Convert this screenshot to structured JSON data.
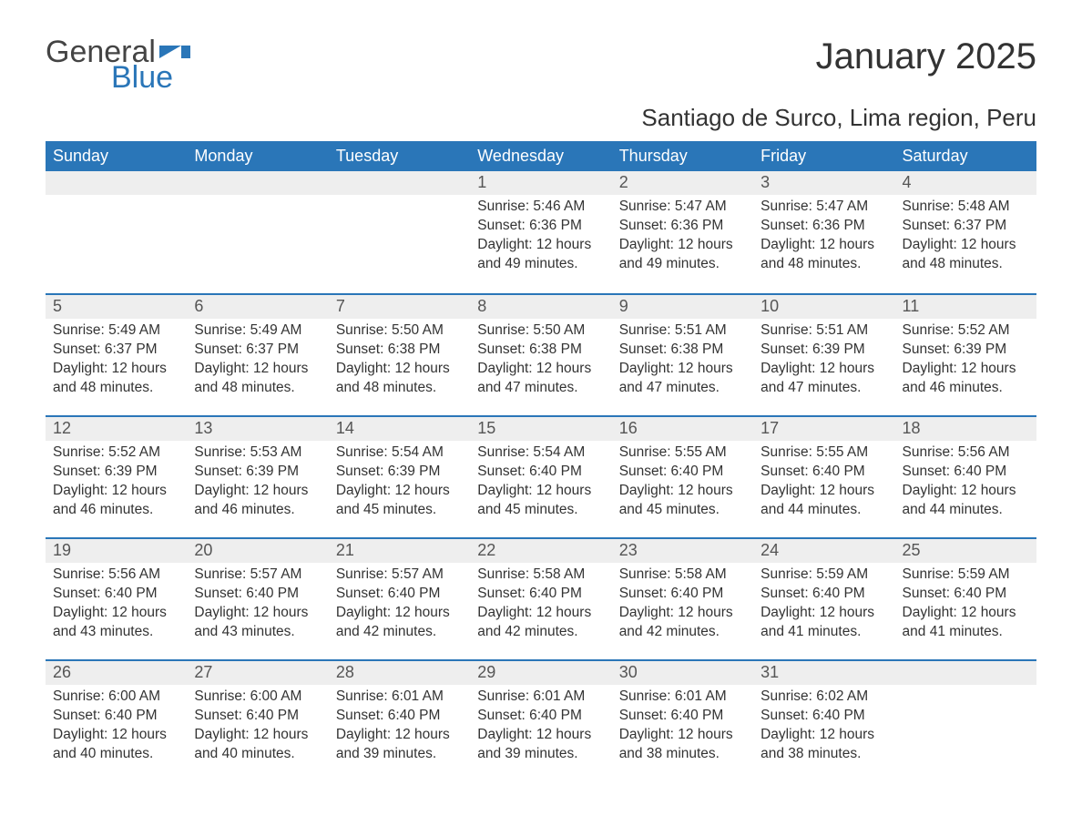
{
  "logo": {
    "word1": "General",
    "word2": "Blue",
    "flag_color": "#2a76b8",
    "text_gray": "#444444"
  },
  "header": {
    "title": "January 2025",
    "location": "Santiago de Surco, Lima region, Peru"
  },
  "styling": {
    "header_bg": "#2a76b8",
    "header_text": "#ffffff",
    "row_divider": "#2a76b8",
    "daynum_bg": "#eeeeee",
    "daynum_text": "#555555",
    "body_text": "#333333",
    "page_bg": "#ffffff",
    "title_fontsize": 40,
    "location_fontsize": 26,
    "dayhead_fontsize": 18,
    "body_fontsize": 15.5
  },
  "calendar": {
    "type": "month-grid",
    "columns": 7,
    "day_headers": [
      "Sunday",
      "Monday",
      "Tuesday",
      "Wednesday",
      "Thursday",
      "Friday",
      "Saturday"
    ],
    "labels": {
      "sunrise": "Sunrise",
      "sunset": "Sunset",
      "daylight": "Daylight"
    },
    "weeks": [
      [
        null,
        null,
        null,
        {
          "day": "1",
          "sunrise": "5:46 AM",
          "sunset": "6:36 PM",
          "daylight": "12 hours and 49 minutes."
        },
        {
          "day": "2",
          "sunrise": "5:47 AM",
          "sunset": "6:36 PM",
          "daylight": "12 hours and 49 minutes."
        },
        {
          "day": "3",
          "sunrise": "5:47 AM",
          "sunset": "6:36 PM",
          "daylight": "12 hours and 48 minutes."
        },
        {
          "day": "4",
          "sunrise": "5:48 AM",
          "sunset": "6:37 PM",
          "daylight": "12 hours and 48 minutes."
        }
      ],
      [
        {
          "day": "5",
          "sunrise": "5:49 AM",
          "sunset": "6:37 PM",
          "daylight": "12 hours and 48 minutes."
        },
        {
          "day": "6",
          "sunrise": "5:49 AM",
          "sunset": "6:37 PM",
          "daylight": "12 hours and 48 minutes."
        },
        {
          "day": "7",
          "sunrise": "5:50 AM",
          "sunset": "6:38 PM",
          "daylight": "12 hours and 48 minutes."
        },
        {
          "day": "8",
          "sunrise": "5:50 AM",
          "sunset": "6:38 PM",
          "daylight": "12 hours and 47 minutes."
        },
        {
          "day": "9",
          "sunrise": "5:51 AM",
          "sunset": "6:38 PM",
          "daylight": "12 hours and 47 minutes."
        },
        {
          "day": "10",
          "sunrise": "5:51 AM",
          "sunset": "6:39 PM",
          "daylight": "12 hours and 47 minutes."
        },
        {
          "day": "11",
          "sunrise": "5:52 AM",
          "sunset": "6:39 PM",
          "daylight": "12 hours and 46 minutes."
        }
      ],
      [
        {
          "day": "12",
          "sunrise": "5:52 AM",
          "sunset": "6:39 PM",
          "daylight": "12 hours and 46 minutes."
        },
        {
          "day": "13",
          "sunrise": "5:53 AM",
          "sunset": "6:39 PM",
          "daylight": "12 hours and 46 minutes."
        },
        {
          "day": "14",
          "sunrise": "5:54 AM",
          "sunset": "6:39 PM",
          "daylight": "12 hours and 45 minutes."
        },
        {
          "day": "15",
          "sunrise": "5:54 AM",
          "sunset": "6:40 PM",
          "daylight": "12 hours and 45 minutes."
        },
        {
          "day": "16",
          "sunrise": "5:55 AM",
          "sunset": "6:40 PM",
          "daylight": "12 hours and 45 minutes."
        },
        {
          "day": "17",
          "sunrise": "5:55 AM",
          "sunset": "6:40 PM",
          "daylight": "12 hours and 44 minutes."
        },
        {
          "day": "18",
          "sunrise": "5:56 AM",
          "sunset": "6:40 PM",
          "daylight": "12 hours and 44 minutes."
        }
      ],
      [
        {
          "day": "19",
          "sunrise": "5:56 AM",
          "sunset": "6:40 PM",
          "daylight": "12 hours and 43 minutes."
        },
        {
          "day": "20",
          "sunrise": "5:57 AM",
          "sunset": "6:40 PM",
          "daylight": "12 hours and 43 minutes."
        },
        {
          "day": "21",
          "sunrise": "5:57 AM",
          "sunset": "6:40 PM",
          "daylight": "12 hours and 42 minutes."
        },
        {
          "day": "22",
          "sunrise": "5:58 AM",
          "sunset": "6:40 PM",
          "daylight": "12 hours and 42 minutes."
        },
        {
          "day": "23",
          "sunrise": "5:58 AM",
          "sunset": "6:40 PM",
          "daylight": "12 hours and 42 minutes."
        },
        {
          "day": "24",
          "sunrise": "5:59 AM",
          "sunset": "6:40 PM",
          "daylight": "12 hours and 41 minutes."
        },
        {
          "day": "25",
          "sunrise": "5:59 AM",
          "sunset": "6:40 PM",
          "daylight": "12 hours and 41 minutes."
        }
      ],
      [
        {
          "day": "26",
          "sunrise": "6:00 AM",
          "sunset": "6:40 PM",
          "daylight": "12 hours and 40 minutes."
        },
        {
          "day": "27",
          "sunrise": "6:00 AM",
          "sunset": "6:40 PM",
          "daylight": "12 hours and 40 minutes."
        },
        {
          "day": "28",
          "sunrise": "6:01 AM",
          "sunset": "6:40 PM",
          "daylight": "12 hours and 39 minutes."
        },
        {
          "day": "29",
          "sunrise": "6:01 AM",
          "sunset": "6:40 PM",
          "daylight": "12 hours and 39 minutes."
        },
        {
          "day": "30",
          "sunrise": "6:01 AM",
          "sunset": "6:40 PM",
          "daylight": "12 hours and 38 minutes."
        },
        {
          "day": "31",
          "sunrise": "6:02 AM",
          "sunset": "6:40 PM",
          "daylight": "12 hours and 38 minutes."
        },
        null
      ]
    ]
  }
}
